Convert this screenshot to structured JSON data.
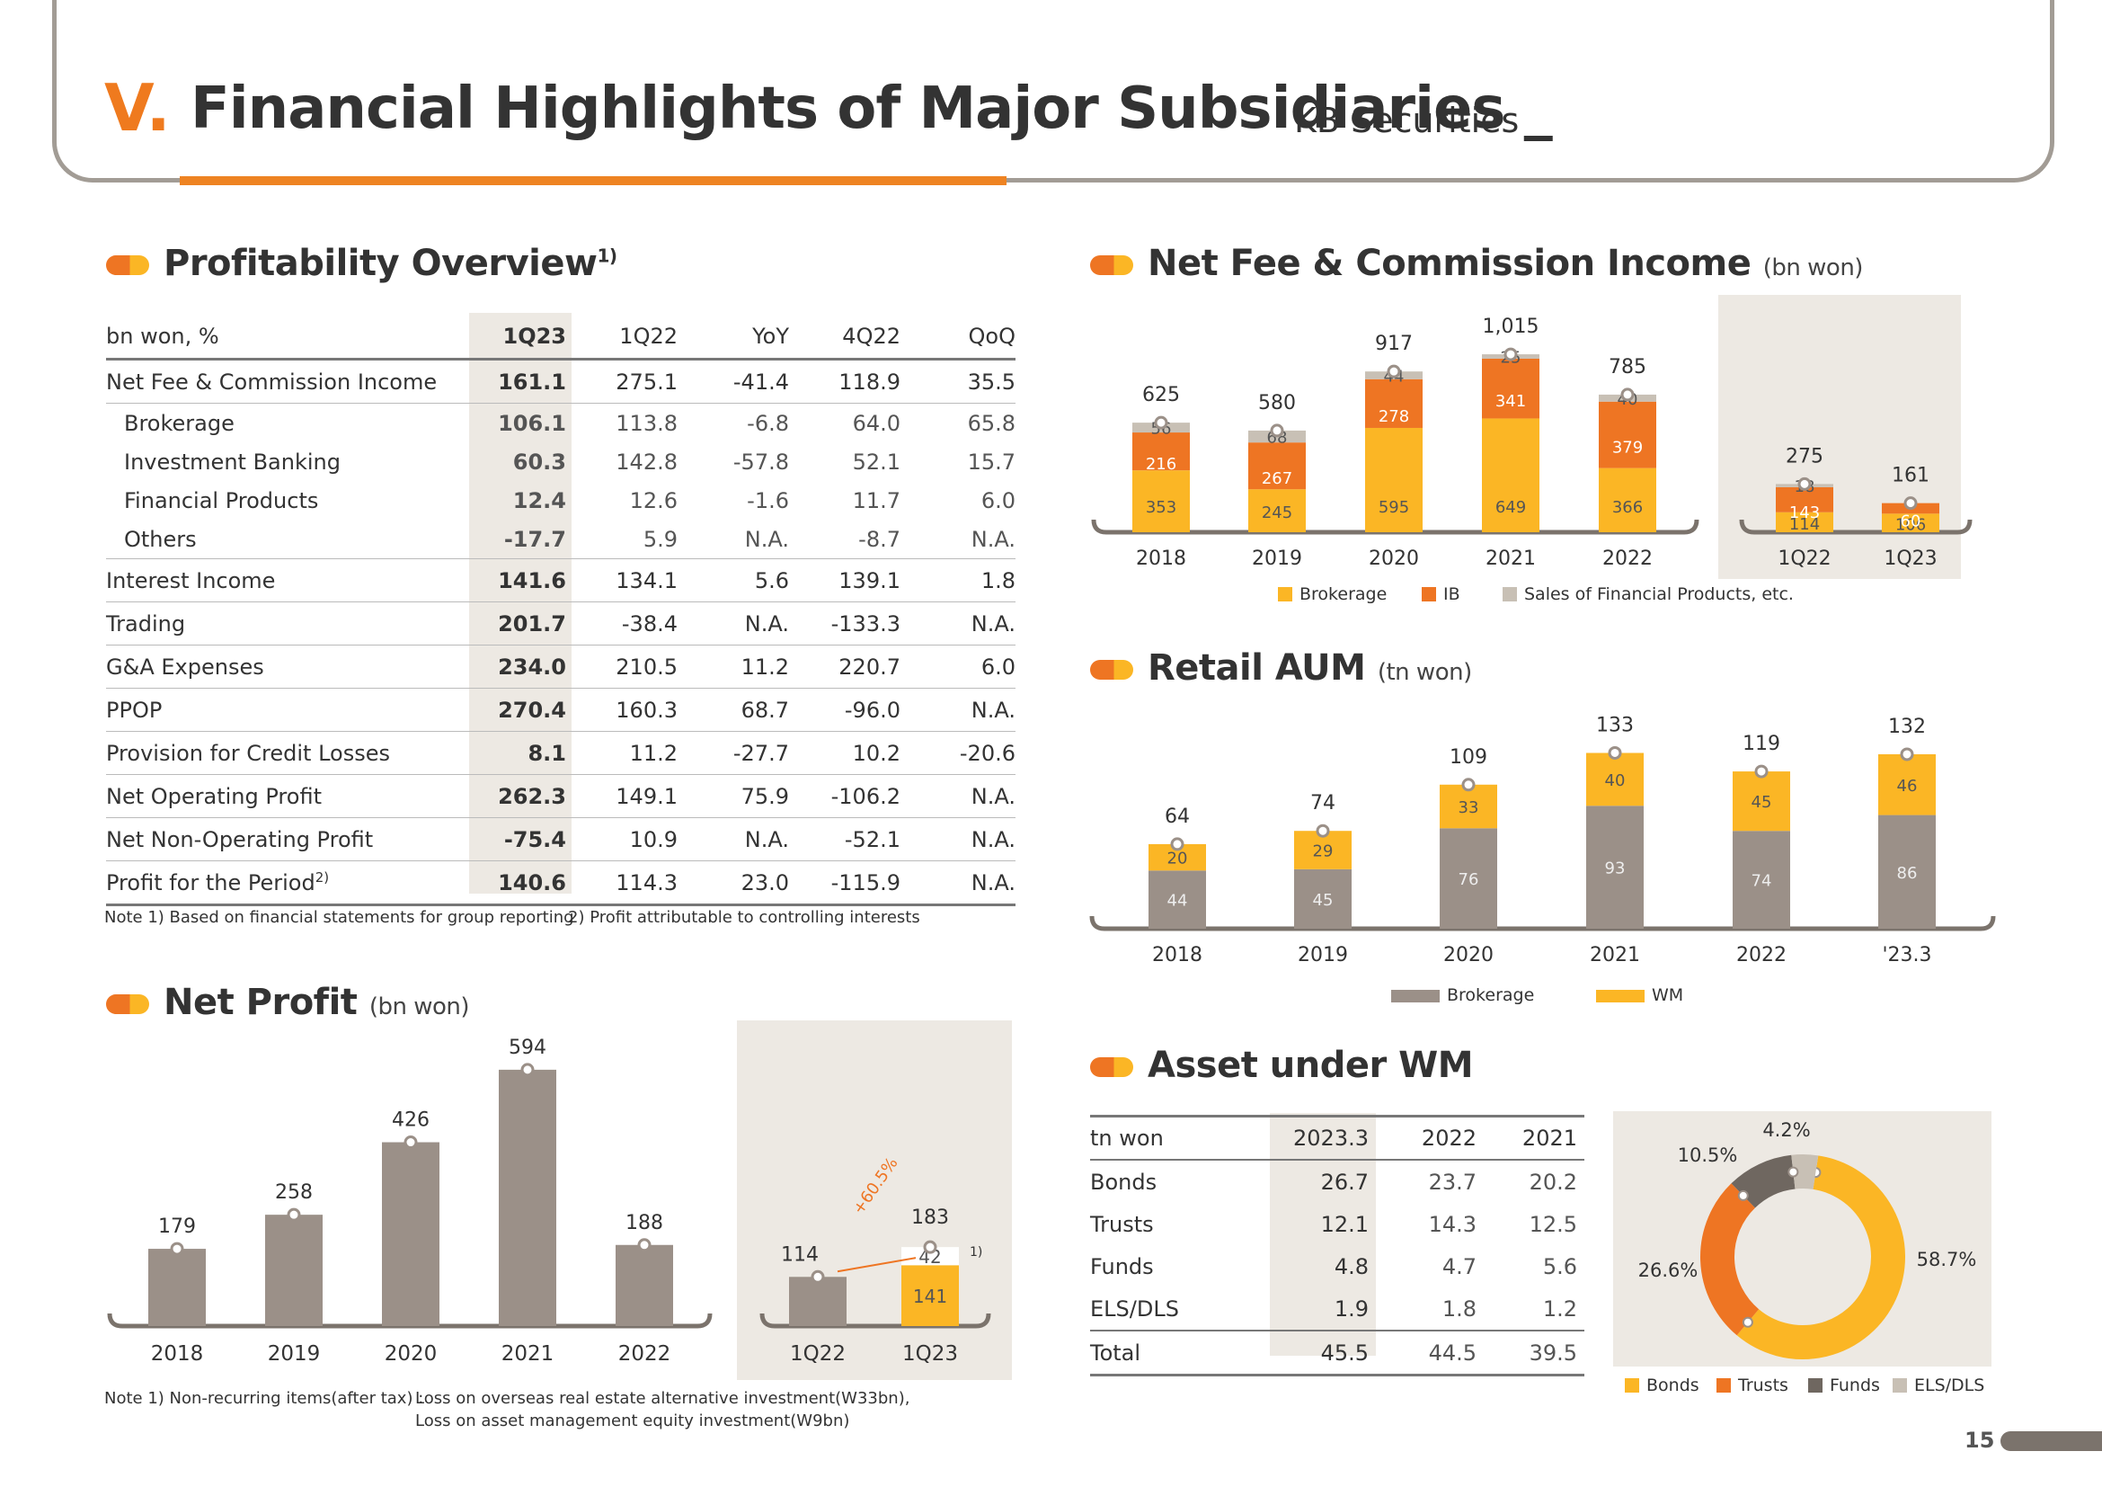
{
  "header": {
    "section_number": "V.",
    "title": "Financial Highlights of Major Subsidiaries _",
    "subtitle": "KB Securities"
  },
  "page_number": "15",
  "colors": {
    "orange": "#ee7523",
    "yellow": "#fbb625",
    "gray": "#9b9088",
    "light_gray": "#c8c0b5",
    "panel_bg": "#ede9e3"
  },
  "profitability": {
    "title": "Profitability Overview",
    "title_sup": "1)",
    "headers": [
      "bn won, %",
      "1Q23",
      "1Q22",
      "YoY",
      "4Q22",
      "QoQ"
    ],
    "rows": [
      {
        "label": "Net Fee & Commission Income",
        "values": [
          "161.1",
          "275.1",
          "-41.4",
          "118.9",
          "35.5"
        ]
      },
      {
        "label": "Brokerage",
        "values": [
          "106.1",
          "113.8",
          "-6.8",
          "64.0",
          "65.8"
        ]
      },
      {
        "label": "Investment Banking",
        "values": [
          "60.3",
          "142.8",
          "-57.8",
          "52.1",
          "15.7"
        ]
      },
      {
        "label": "Financial Products",
        "values": [
          "12.4",
          "12.6",
          "-1.6",
          "11.7",
          "6.0"
        ]
      },
      {
        "label": "Others",
        "values": [
          "-17.7",
          "5.9",
          "N.A.",
          "-8.7",
          "N.A."
        ]
      },
      {
        "label": "Interest Income",
        "values": [
          "141.6",
          "134.1",
          "5.6",
          "139.1",
          "1.8"
        ]
      },
      {
        "label": "Trading",
        "values": [
          "201.7",
          "-38.4",
          "N.A.",
          "-133.3",
          "N.A."
        ]
      },
      {
        "label": "G&A Expenses",
        "values": [
          "234.0",
          "210.5",
          "11.2",
          "220.7",
          "6.0"
        ]
      },
      {
        "label": "PPOP",
        "values": [
          "270.4",
          "160.3",
          "68.7",
          "-96.0",
          "N.A."
        ]
      },
      {
        "label": "Provision for Credit Losses",
        "values": [
          "8.1",
          "11.2",
          "-27.7",
          "10.2",
          "-20.6"
        ]
      },
      {
        "label": "Net Operating Profit",
        "values": [
          "262.3",
          "149.1",
          "75.9",
          "-106.2",
          "N.A."
        ]
      },
      {
        "label": "Net Non-Operating Profit",
        "values": [
          "-75.4",
          "10.9",
          "N.A.",
          "-52.1",
          "N.A."
        ]
      },
      {
        "label": "Profit for the Period",
        "label_sup": "2)",
        "values": [
          "140.6",
          "114.3",
          "23.0",
          "-115.9",
          "N.A."
        ]
      }
    ],
    "note1": "Note 1) Based on financial statements for group reporting",
    "note2": "2) Profit attributable to controlling interests"
  },
  "net_profit": {
    "title": "Net Profit",
    "unit": "(bn won)",
    "growth_label": "+60.5%",
    "non_recurring_label": "42",
    "footnote_mark": "1)",
    "note_prefix": "Note 1) Non-recurring items(after tax) :",
    "note_line1": "Loss on overseas real estate alternative investment(W33bn),",
    "note_line2": "Loss on asset management equity investment(W9bn)"
  },
  "fee_income": {
    "title": "Net Fee & Commission Income",
    "unit": "(bn won)"
  },
  "retail_aum": {
    "title": "Retail AUM",
    "unit": "(tn won)"
  },
  "wm": {
    "title": "Asset under WM",
    "headers": [
      "tn won",
      "2023.3",
      "2022",
      "2021"
    ],
    "rows": [
      {
        "label": "Bonds",
        "values": [
          "26.7",
          "23.7",
          "20.2"
        ]
      },
      {
        "label": "Trusts",
        "values": [
          "12.1",
          "14.3",
          "12.5"
        ]
      },
      {
        "label": "Funds",
        "values": [
          "4.8",
          "4.7",
          "5.6"
        ]
      },
      {
        "label": "ELS/DLS",
        "values": [
          "1.9",
          "1.8",
          "1.2"
        ]
      },
      {
        "label": "Total",
        "values": [
          "45.5",
          "44.5",
          "39.5"
        ]
      }
    ]
  },
  "chart_data": [
    {
      "type": "bar",
      "chart": "net_profit",
      "categories": [
        "2018",
        "2019",
        "2020",
        "2021",
        "2022"
      ],
      "values": [
        179,
        258,
        426,
        594,
        188
      ],
      "inset": {
        "categories": [
          "1Q22",
          "1Q23"
        ],
        "totals": [
          114,
          183
        ],
        "series": [
          {
            "name": "",
            "values": [
              114,
              141
            ]
          },
          {
            "name": "",
            "values": [
              0,
              42
            ]
          }
        ]
      }
    },
    {
      "type": "bar",
      "chart": "fee_income",
      "stacked": true,
      "categories": [
        "2018",
        "2019",
        "2020",
        "2021",
        "2022"
      ],
      "totals": [
        625,
        580,
        917,
        1015,
        785
      ],
      "total_labels": [
        "625",
        "580",
        "917",
        "1,015",
        "785"
      ],
      "series": [
        {
          "name": "Brokerage",
          "values": [
            353,
            245,
            595,
            649,
            366
          ]
        },
        {
          "name": "IB",
          "values": [
            216,
            267,
            278,
            341,
            379
          ]
        },
        {
          "name": "Sales of Financial Products, etc.",
          "values": [
            56,
            68,
            44,
            25,
            40
          ]
        }
      ],
      "inset": {
        "categories": [
          "1Q22",
          "1Q23"
        ],
        "totals": [
          275,
          161
        ],
        "series": [
          {
            "name": "Brokerage",
            "values": [
              114,
              106
            ]
          },
          {
            "name": "IB",
            "values": [
              143,
              60
            ]
          },
          {
            "name": "Sales of Financial Products, etc.",
            "values": [
              18,
              null
            ]
          }
        ]
      }
    },
    {
      "type": "bar",
      "chart": "retail_aum",
      "stacked": true,
      "categories": [
        "2018",
        "2019",
        "2020",
        "2021",
        "2022",
        "'23.3"
      ],
      "totals": [
        64,
        74,
        109,
        133,
        119,
        132
      ],
      "series": [
        {
          "name": "Brokerage",
          "values": [
            44,
            45,
            76,
            93,
            74,
            86
          ]
        },
        {
          "name": "WM",
          "values": [
            20,
            29,
            33,
            40,
            45,
            46
          ]
        }
      ]
    },
    {
      "type": "pie",
      "chart": "asset_under_wm",
      "donut": true,
      "slices": [
        {
          "name": "Bonds",
          "value": 58.7,
          "label": "58.7%"
        },
        {
          "name": "Trusts",
          "value": 26.6,
          "label": "26.6%"
        },
        {
          "name": "Funds",
          "value": 10.5,
          "label": "10.5%"
        },
        {
          "name": "ELS/DLS",
          "value": 4.2,
          "label": "4.2%"
        }
      ]
    }
  ]
}
